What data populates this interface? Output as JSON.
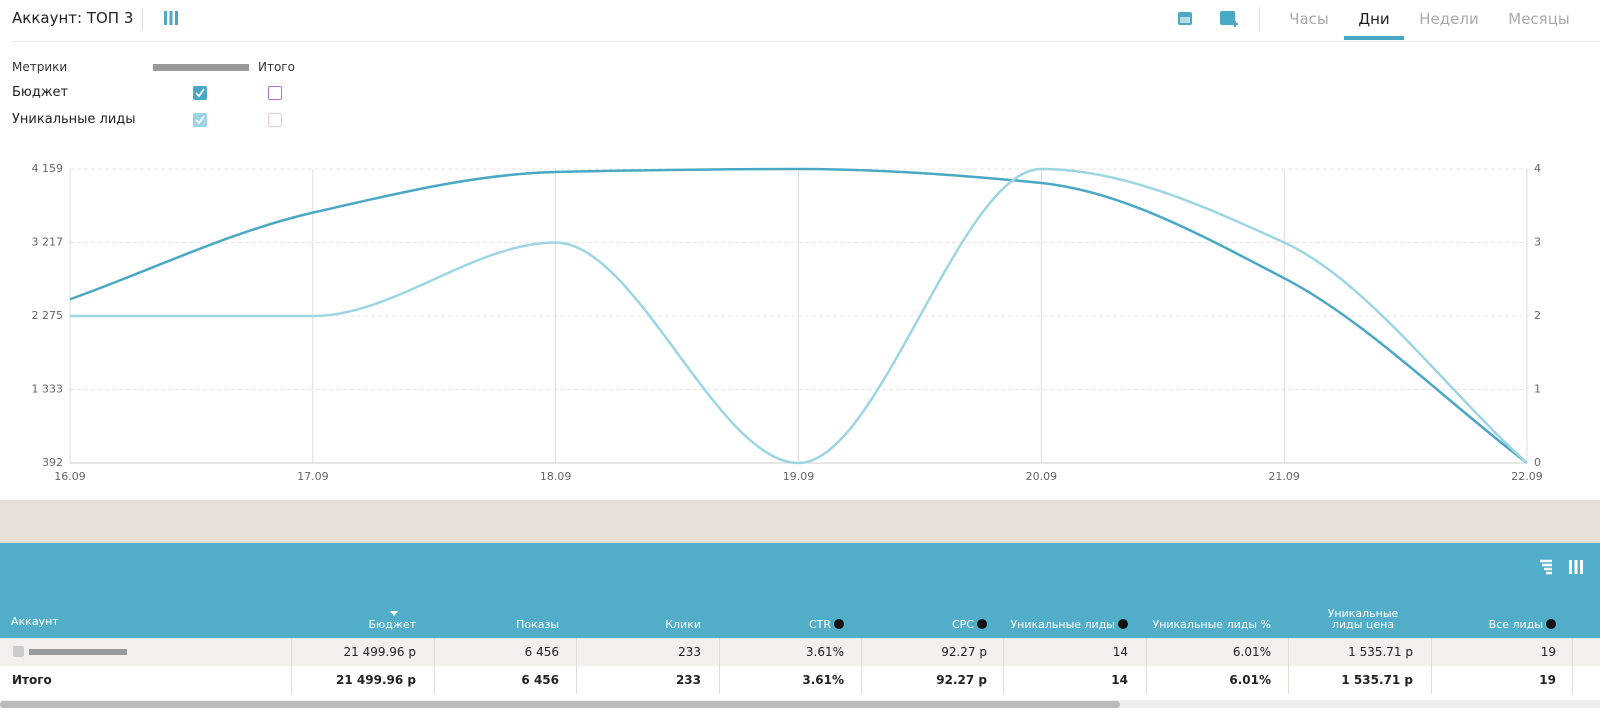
{
  "header": {
    "title": "Аккаунт: ТОП 3",
    "tabs": [
      "Часы",
      "Дни",
      "Недели",
      "Месяцы"
    ],
    "active_tab": "Дни"
  },
  "metrics": {
    "header": "Метрики",
    "total_header": "Итого",
    "checks": [
      [
        true,
        false
      ],
      [
        true,
        false
      ]
    ]
  },
  "chart_data": {
    "type": "line",
    "categories": [
      "16.09",
      "17.09",
      "18.09",
      "19.09",
      "20.09",
      "21.09",
      "22.09"
    ],
    "series": [
      {
        "name": "Бюджет",
        "color": "#4aa8c4",
        "values": [
          2490,
          3600,
          4120,
          4159,
          3980,
          2760,
          392
        ]
      },
      {
        "name": "Уникальные лиды",
        "color": "#9dd5e3",
        "axis": "y2",
        "values": [
          2,
          2,
          3,
          0,
          4,
          3,
          0
        ]
      }
    ],
    "ylim": [
      392,
      4159
    ],
    "yticks": [
      392,
      {
        "value": 1333,
        "label": "1 333"
      },
      {
        "value": 2275,
        "label": "2 275"
      },
      {
        "value": 3217,
        "label": "3 217"
      },
      {
        "value": 4159,
        "label": "4 159"
      }
    ],
    "y2lim": [
      0,
      4
    ],
    "y2ticks": [
      0,
      1,
      2,
      3,
      4
    ],
    "grid": true
  },
  "table": {
    "columns": [
      "Аккаунт",
      "Бюджет",
      "Показы",
      "Клики",
      "CTR",
      "CPC",
      "Уникальные лиды",
      "Уникальные лиды %",
      "Уникальные лиды цена",
      "Все лиды"
    ],
    "rows": [
      [
        null,
        "21 499.96 р",
        "6 456",
        "233",
        "3.61%",
        "92.27 р",
        "14",
        "6.01%",
        "1 535.71 р",
        "19"
      ],
      [
        "Итого",
        "21 499.96 р",
        "6 456",
        "233",
        "3.61%",
        "92.27 р",
        "14",
        "6.01%",
        "1 535.71 р",
        "19"
      ]
    ]
  }
}
